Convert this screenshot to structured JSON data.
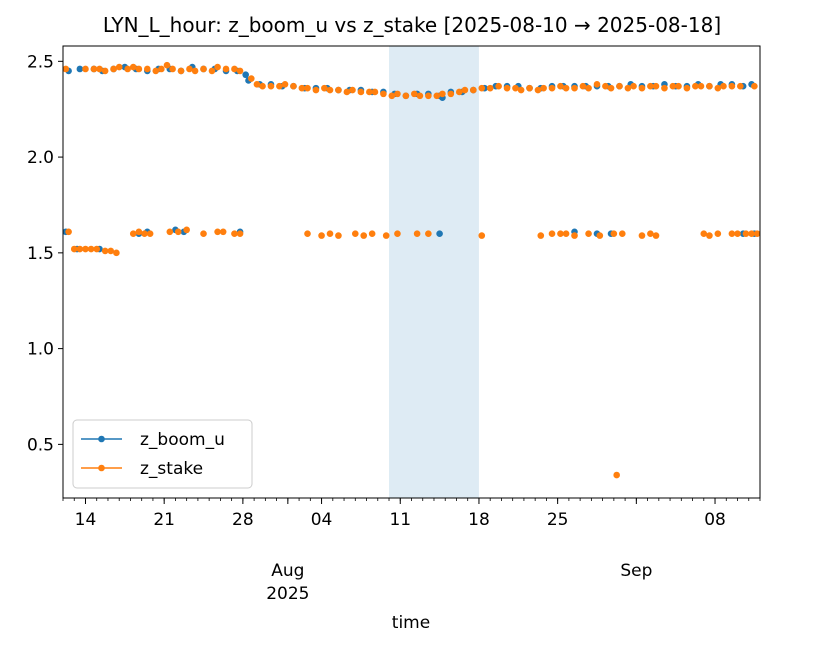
{
  "chart_data": {
    "type": "scatter",
    "title": "LYN_L_hour: z_boom_u vs z_stake  [2025-08-10 → 2025-08-18]",
    "xlabel": "time",
    "ylabel": "",
    "xlim": [
      "2025-07-12",
      "2025-09-12"
    ],
    "ylim": [
      0.22,
      2.58
    ],
    "x_ticks": [
      {
        "date": "2025-07-14",
        "label": "14"
      },
      {
        "date": "2025-07-21",
        "label": "21"
      },
      {
        "date": "2025-07-28",
        "label": "28"
      },
      {
        "date": "2025-08-04",
        "label": "04"
      },
      {
        "date": "2025-08-11",
        "label": "11"
      },
      {
        "date": "2025-08-18",
        "label": "18"
      },
      {
        "date": "2025-08-25",
        "label": "25"
      },
      {
        "date": "2025-09-08",
        "label": "08"
      }
    ],
    "x_month_labels": [
      {
        "date": "2025-08-01",
        "line1": "Aug",
        "line2": "2025"
      },
      {
        "date": "2025-09-01",
        "line1": "Sep",
        "line2": ""
      }
    ],
    "y_ticks": [
      0.5,
      1.0,
      1.5,
      2.0,
      2.5
    ],
    "highlight_span": {
      "start": "2025-08-10",
      "end": "2025-08-18"
    },
    "grid": false,
    "legend_position": "lower-left",
    "series": [
      {
        "name": "z_boom_u",
        "color": "#1f77b4",
        "points": [
          [
            "2025-07-12T12:00",
            2.45
          ],
          [
            "2025-07-13T12:00",
            2.46
          ],
          [
            "2025-07-14T18:00",
            2.46
          ],
          [
            "2025-07-15T12:00",
            2.45
          ],
          [
            "2025-07-16T12:00",
            2.46
          ],
          [
            "2025-07-17T12:00",
            2.47
          ],
          [
            "2025-07-18T12:00",
            2.46
          ],
          [
            "2025-07-19T12:00",
            2.45
          ],
          [
            "2025-07-20T12:00",
            2.46
          ],
          [
            "2025-07-21T12:00",
            2.46
          ],
          [
            "2025-07-22T12:00",
            2.45
          ],
          [
            "2025-07-23T12:00",
            2.47
          ],
          [
            "2025-07-24T12:00",
            2.46
          ],
          [
            "2025-07-25T12:00",
            2.46
          ],
          [
            "2025-07-26T12:00",
            2.45
          ],
          [
            "2025-07-27T12:00",
            2.45
          ],
          [
            "2025-07-28T06:00",
            2.43
          ],
          [
            "2025-07-28T12:00",
            2.4
          ],
          [
            "2025-07-29T12:00",
            2.38
          ],
          [
            "2025-07-30T12:00",
            2.38
          ],
          [
            "2025-07-31T12:00",
            2.37
          ],
          [
            "2025-08-01T12:00",
            2.37
          ],
          [
            "2025-08-02T12:00",
            2.36
          ],
          [
            "2025-08-03T12:00",
            2.36
          ],
          [
            "2025-08-04T12:00",
            2.36
          ],
          [
            "2025-08-05T12:00",
            2.35
          ],
          [
            "2025-08-06T12:00",
            2.35
          ],
          [
            "2025-08-07T12:00",
            2.35
          ],
          [
            "2025-08-08T12:00",
            2.34
          ],
          [
            "2025-08-09T12:00",
            2.34
          ],
          [
            "2025-08-10T12:00",
            2.33
          ],
          [
            "2025-08-11T12:00",
            2.32
          ],
          [
            "2025-08-12T12:00",
            2.33
          ],
          [
            "2025-08-13T12:00",
            2.33
          ],
          [
            "2025-08-14T12:00",
            2.32
          ],
          [
            "2025-08-14T18:00",
            2.31
          ],
          [
            "2025-08-15T12:00",
            2.34
          ],
          [
            "2025-08-16T12:00",
            2.34
          ],
          [
            "2025-08-17T12:00",
            2.35
          ],
          [
            "2025-08-18T12:00",
            2.36
          ],
          [
            "2025-08-19T12:00",
            2.37
          ],
          [
            "2025-08-20T12:00",
            2.37
          ],
          [
            "2025-08-21T12:00",
            2.37
          ],
          [
            "2025-08-22T12:00",
            2.36
          ],
          [
            "2025-08-23T12:00",
            2.36
          ],
          [
            "2025-08-24T12:00",
            2.37
          ],
          [
            "2025-08-25T12:00",
            2.37
          ],
          [
            "2025-08-26T12:00",
            2.37
          ],
          [
            "2025-08-27T12:00",
            2.37
          ],
          [
            "2025-08-28T12:00",
            2.37
          ],
          [
            "2025-08-29T12:00",
            2.37
          ],
          [
            "2025-08-30T12:00",
            2.37
          ],
          [
            "2025-08-31T12:00",
            2.38
          ],
          [
            "2025-09-01T12:00",
            2.37
          ],
          [
            "2025-09-02T12:00",
            2.37
          ],
          [
            "2025-09-03T12:00",
            2.38
          ],
          [
            "2025-09-04T12:00",
            2.37
          ],
          [
            "2025-09-05T12:00",
            2.37
          ],
          [
            "2025-09-06T12:00",
            2.38
          ],
          [
            "2025-09-07T12:00",
            2.37
          ],
          [
            "2025-09-08T12:00",
            2.38
          ],
          [
            "2025-09-09T12:00",
            2.38
          ],
          [
            "2025-09-10T12:00",
            2.37
          ],
          [
            "2025-09-11T06:00",
            2.38
          ],
          [
            "2025-07-12T06:00",
            1.61
          ],
          [
            "2025-07-18T18:00",
            1.6
          ],
          [
            "2025-07-19T12:00",
            1.61
          ],
          [
            "2025-07-22T00:00",
            1.62
          ],
          [
            "2025-07-22T18:00",
            1.61
          ],
          [
            "2025-07-27T18:00",
            1.61
          ],
          [
            "2025-08-14T12:00",
            1.6
          ],
          [
            "2025-08-26T12:00",
            1.61
          ],
          [
            "2025-08-28T12:00",
            1.6
          ],
          [
            "2025-08-29T18:00",
            1.6
          ],
          [
            "2025-09-10T12:00",
            1.6
          ],
          [
            "2025-09-11T12:00",
            1.6
          ],
          [
            "2025-07-13T06:00",
            1.52
          ],
          [
            "2025-07-15T06:00",
            1.52
          ]
        ]
      },
      {
        "name": "z_stake",
        "color": "#ff7f0e",
        "points": [
          [
            "2025-07-12T06:00",
            2.46
          ],
          [
            "2025-07-14T00:00",
            2.46
          ],
          [
            "2025-07-14T18:00",
            2.46
          ],
          [
            "2025-07-15T06:00",
            2.46
          ],
          [
            "2025-07-15T18:00",
            2.45
          ],
          [
            "2025-07-16T12:00",
            2.46
          ],
          [
            "2025-07-17T00:00",
            2.47
          ],
          [
            "2025-07-17T18:00",
            2.46
          ],
          [
            "2025-07-18T06:00",
            2.47
          ],
          [
            "2025-07-18T18:00",
            2.46
          ],
          [
            "2025-07-19T12:00",
            2.46
          ],
          [
            "2025-07-20T06:00",
            2.45
          ],
          [
            "2025-07-20T18:00",
            2.46
          ],
          [
            "2025-07-21T06:00",
            2.48
          ],
          [
            "2025-07-21T18:00",
            2.46
          ],
          [
            "2025-07-22T12:00",
            2.45
          ],
          [
            "2025-07-23T06:00",
            2.46
          ],
          [
            "2025-07-23T18:00",
            2.45
          ],
          [
            "2025-07-24T12:00",
            2.46
          ],
          [
            "2025-07-25T06:00",
            2.45
          ],
          [
            "2025-07-25T18:00",
            2.47
          ],
          [
            "2025-07-26T12:00",
            2.46
          ],
          [
            "2025-07-27T06:00",
            2.46
          ],
          [
            "2025-07-27T18:00",
            2.45
          ],
          [
            "2025-07-28T18:00",
            2.41
          ],
          [
            "2025-07-29T06:00",
            2.38
          ],
          [
            "2025-07-29T18:00",
            2.37
          ],
          [
            "2025-07-30T12:00",
            2.37
          ],
          [
            "2025-07-31T06:00",
            2.37
          ],
          [
            "2025-07-31T18:00",
            2.38
          ],
          [
            "2025-08-01T12:00",
            2.37
          ],
          [
            "2025-08-02T06:00",
            2.36
          ],
          [
            "2025-08-02T18:00",
            2.36
          ],
          [
            "2025-08-03T12:00",
            2.35
          ],
          [
            "2025-08-04T06:00",
            2.36
          ],
          [
            "2025-08-04T18:00",
            2.35
          ],
          [
            "2025-08-05T12:00",
            2.35
          ],
          [
            "2025-08-06T06:00",
            2.34
          ],
          [
            "2025-08-06T18:00",
            2.35
          ],
          [
            "2025-08-07T12:00",
            2.34
          ],
          [
            "2025-08-08T06:00",
            2.34
          ],
          [
            "2025-08-08T18:00",
            2.34
          ],
          [
            "2025-08-09T12:00",
            2.33
          ],
          [
            "2025-08-10T06:00",
            2.32
          ],
          [
            "2025-08-10T18:00",
            2.33
          ],
          [
            "2025-08-11T12:00",
            2.32
          ],
          [
            "2025-08-12T06:00",
            2.33
          ],
          [
            "2025-08-12T18:00",
            2.32
          ],
          [
            "2025-08-13T12:00",
            2.32
          ],
          [
            "2025-08-14T06:00",
            2.32
          ],
          [
            "2025-08-14T18:00",
            2.33
          ],
          [
            "2025-08-15T12:00",
            2.33
          ],
          [
            "2025-08-16T06:00",
            2.34
          ],
          [
            "2025-08-16T18:00",
            2.35
          ],
          [
            "2025-08-17T12:00",
            2.35
          ],
          [
            "2025-08-18T06:00",
            2.36
          ],
          [
            "2025-08-19T00:00",
            2.36
          ],
          [
            "2025-08-19T18:00",
            2.37
          ],
          [
            "2025-08-20T12:00",
            2.36
          ],
          [
            "2025-08-21T06:00",
            2.36
          ],
          [
            "2025-08-21T18:00",
            2.35
          ],
          [
            "2025-08-22T12:00",
            2.36
          ],
          [
            "2025-08-23T06:00",
            2.35
          ],
          [
            "2025-08-23T18:00",
            2.36
          ],
          [
            "2025-08-24T12:00",
            2.36
          ],
          [
            "2025-08-25T06:00",
            2.37
          ],
          [
            "2025-08-25T18:00",
            2.36
          ],
          [
            "2025-08-26T12:00",
            2.36
          ],
          [
            "2025-08-27T06:00",
            2.37
          ],
          [
            "2025-08-27T18:00",
            2.36
          ],
          [
            "2025-08-28T12:00",
            2.38
          ],
          [
            "2025-08-29T06:00",
            2.37
          ],
          [
            "2025-08-29T18:00",
            2.36
          ],
          [
            "2025-08-30T12:00",
            2.37
          ],
          [
            "2025-08-31T06:00",
            2.36
          ],
          [
            "2025-08-31T18:00",
            2.37
          ],
          [
            "2025-09-01T12:00",
            2.36
          ],
          [
            "2025-09-02T06:00",
            2.37
          ],
          [
            "2025-09-02T18:00",
            2.37
          ],
          [
            "2025-09-03T12:00",
            2.36
          ],
          [
            "2025-09-04T06:00",
            2.37
          ],
          [
            "2025-09-04T18:00",
            2.37
          ],
          [
            "2025-09-05T12:00",
            2.36
          ],
          [
            "2025-09-06T06:00",
            2.37
          ],
          [
            "2025-09-06T18:00",
            2.37
          ],
          [
            "2025-09-07T12:00",
            2.37
          ],
          [
            "2025-09-08T06:00",
            2.36
          ],
          [
            "2025-09-08T18:00",
            2.37
          ],
          [
            "2025-09-09T12:00",
            2.37
          ],
          [
            "2025-09-10T06:00",
            2.37
          ],
          [
            "2025-09-11T12:00",
            2.37
          ],
          [
            "2025-07-12T12:00",
            1.61
          ],
          [
            "2025-07-13T00:00",
            1.52
          ],
          [
            "2025-07-13T12:00",
            1.52
          ],
          [
            "2025-07-14T00:00",
            1.52
          ],
          [
            "2025-07-14T12:00",
            1.52
          ],
          [
            "2025-07-15T00:00",
            1.52
          ],
          [
            "2025-07-15T18:00",
            1.51
          ],
          [
            "2025-07-16T06:00",
            1.51
          ],
          [
            "2025-07-16T18:00",
            1.5
          ],
          [
            "2025-07-18T06:00",
            1.6
          ],
          [
            "2025-07-18T18:00",
            1.61
          ],
          [
            "2025-07-19T06:00",
            1.6
          ],
          [
            "2025-07-19T18:00",
            1.6
          ],
          [
            "2025-07-21T12:00",
            1.61
          ],
          [
            "2025-07-22T06:00",
            1.61
          ],
          [
            "2025-07-23T00:00",
            1.62
          ],
          [
            "2025-07-24T12:00",
            1.6
          ],
          [
            "2025-07-25T18:00",
            1.61
          ],
          [
            "2025-07-26T06:00",
            1.61
          ],
          [
            "2025-07-27T06:00",
            1.6
          ],
          [
            "2025-07-27T18:00",
            1.6
          ],
          [
            "2025-08-02T18:00",
            1.6
          ],
          [
            "2025-08-04T00:00",
            1.59
          ],
          [
            "2025-08-04T18:00",
            1.6
          ],
          [
            "2025-08-05T12:00",
            1.59
          ],
          [
            "2025-08-07T00:00",
            1.6
          ],
          [
            "2025-08-07T18:00",
            1.59
          ],
          [
            "2025-08-08T12:00",
            1.6
          ],
          [
            "2025-08-09T18:00",
            1.59
          ],
          [
            "2025-08-10T18:00",
            1.6
          ],
          [
            "2025-08-12T12:00",
            1.6
          ],
          [
            "2025-08-13T12:00",
            1.6
          ],
          [
            "2025-08-18T06:00",
            1.59
          ],
          [
            "2025-08-23T12:00",
            1.59
          ],
          [
            "2025-08-24T12:00",
            1.6
          ],
          [
            "2025-08-25T06:00",
            1.6
          ],
          [
            "2025-08-25T18:00",
            1.6
          ],
          [
            "2025-08-26T12:00",
            1.59
          ],
          [
            "2025-08-27T18:00",
            1.6
          ],
          [
            "2025-08-28T18:00",
            1.59
          ],
          [
            "2025-08-30T00:00",
            1.6
          ],
          [
            "2025-08-30T18:00",
            1.6
          ],
          [
            "2025-09-01T12:00",
            1.59
          ],
          [
            "2025-09-02T06:00",
            1.6
          ],
          [
            "2025-09-02T18:00",
            1.59
          ],
          [
            "2025-09-07T00:00",
            1.6
          ],
          [
            "2025-09-07T12:00",
            1.59
          ],
          [
            "2025-09-08T06:00",
            1.6
          ],
          [
            "2025-09-09T12:00",
            1.6
          ],
          [
            "2025-09-10T00:00",
            1.6
          ],
          [
            "2025-09-10T18:00",
            1.6
          ],
          [
            "2025-09-11T06:00",
            1.6
          ],
          [
            "2025-09-11T18:00",
            1.6
          ],
          [
            "2025-08-30T06:00",
            0.34
          ]
        ]
      }
    ]
  }
}
